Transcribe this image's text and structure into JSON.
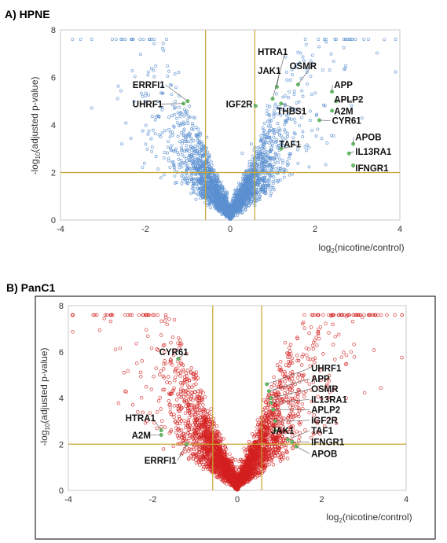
{
  "chart_data": [
    {
      "type": "scatter",
      "panel_title": "A) HPNE",
      "xlabel": "log2(nicotine/control)",
      "ylabel": "-log10(adjusted p-value)",
      "xlim": [
        -4,
        4
      ],
      "ylim": [
        0,
        8
      ],
      "xticks": [
        -4,
        -2,
        0,
        2,
        4
      ],
      "yticks": [
        0,
        2,
        4,
        6,
        8
      ],
      "threshold_x": [
        -0.58,
        0.58
      ],
      "threshold_y": 2,
      "grid": false,
      "legend": "none",
      "point_color": "#5b8fd0",
      "highlight_color": "#6cc36c",
      "threshold_color": "#c8a430",
      "highlighted": [
        {
          "gene": "HTRA1",
          "x": 1.0,
          "y": 5.1
        },
        {
          "gene": "JAK1",
          "x": 1.1,
          "y": 5.6
        },
        {
          "gene": "OSMR",
          "x": 1.6,
          "y": 5.7
        },
        {
          "gene": "APP",
          "x": 2.4,
          "y": 5.4
        },
        {
          "gene": "APLP2",
          "x": 2.5,
          "y": 5.0
        },
        {
          "gene": "A2M",
          "x": 2.4,
          "y": 4.6
        },
        {
          "gene": "CYR61",
          "x": 2.1,
          "y": 4.2
        },
        {
          "gene": "THBS1",
          "x": 1.2,
          "y": 4.9
        },
        {
          "gene": "IGF2R",
          "x": 0.6,
          "y": 4.8
        },
        {
          "gene": "TAF1",
          "x": 1.2,
          "y": 3.0
        },
        {
          "gene": "APOB",
          "x": 2.9,
          "y": 3.2
        },
        {
          "gene": "IL13RA1",
          "x": 2.8,
          "y": 2.8
        },
        {
          "gene": "IFNGR1",
          "x": 2.9,
          "y": 2.3
        },
        {
          "gene": "ERRFI1",
          "x": -1.0,
          "y": 5.0
        },
        {
          "gene": "UHRF1",
          "x": -1.1,
          "y": 4.9
        }
      ],
      "labels": [
        {
          "text": "ERRFI1",
          "x": -2.3,
          "y": 5.55,
          "point": "ERRFI1"
        },
        {
          "text": "UHRF1",
          "x": -2.3,
          "y": 4.75,
          "point": "UHRF1"
        },
        {
          "text": "IGF2R",
          "x": -0.1,
          "y": 4.75,
          "point": "IGF2R"
        },
        {
          "text": "HTRA1",
          "x": 0.65,
          "y": 6.95,
          "point": "HTRA1"
        },
        {
          "text": "JAK1",
          "x": 0.65,
          "y": 6.15,
          "point": "JAK1"
        },
        {
          "text": "OSMR",
          "x": 1.4,
          "y": 6.35,
          "point": "OSMR"
        },
        {
          "text": "THBS1",
          "x": 1.1,
          "y": 4.45,
          "point": "THBS1"
        },
        {
          "text": "APP",
          "x": 2.45,
          "y": 5.55,
          "point": "APP"
        },
        {
          "text": "APLP2",
          "x": 2.45,
          "y": 4.95,
          "point": "APLP2"
        },
        {
          "text": "A2M",
          "x": 2.45,
          "y": 4.45,
          "point": "A2M"
        },
        {
          "text": "CYR61",
          "x": 2.4,
          "y": 4.05,
          "point": "CYR61"
        },
        {
          "text": "TAF1",
          "x": 1.15,
          "y": 3.05,
          "point": "TAF1"
        },
        {
          "text": "APOB",
          "x": 2.95,
          "y": 3.35,
          "point": "APOB"
        },
        {
          "text": "IL13RA1",
          "x": 2.95,
          "y": 2.75,
          "point": "IL13RA1"
        },
        {
          "text": "IFNGR1",
          "x": 2.95,
          "y": 2.05,
          "point": "IFNGR1"
        }
      ]
    },
    {
      "type": "scatter",
      "panel_title": "B) PanC1",
      "xlabel": "log2(nicotine/control)",
      "ylabel": "-log10(adjusted p-value)",
      "xlim": [
        -4,
        4
      ],
      "ylim": [
        0,
        8
      ],
      "xticks": [
        -4,
        -2,
        0,
        2,
        4
      ],
      "yticks": [
        0,
        2,
        4,
        6,
        8
      ],
      "threshold_x": [
        -0.58,
        0.58
      ],
      "threshold_y": 2,
      "grid": false,
      "legend": "none",
      "point_color": "#d42020",
      "highlight_color": "#6cc36c",
      "threshold_color": "#c8a430",
      "highlighted": [
        {
          "gene": "CYR61",
          "x": -1.4,
          "y": 5.7
        },
        {
          "gene": "HTRA1",
          "x": -1.8,
          "y": 2.6
        },
        {
          "gene": "A2M",
          "x": -1.8,
          "y": 2.4
        },
        {
          "gene": "ERRFI1",
          "x": -1.2,
          "y": 2.0
        },
        {
          "gene": "UHRF1",
          "x": 0.7,
          "y": 4.6
        },
        {
          "gene": "APP",
          "x": 0.75,
          "y": 4.3
        },
        {
          "gene": "OSMR",
          "x": 0.8,
          "y": 4.0
        },
        {
          "gene": "IL13RA1",
          "x": 0.8,
          "y": 3.8
        },
        {
          "gene": "APLP2",
          "x": 0.85,
          "y": 3.5
        },
        {
          "gene": "IGF2R",
          "x": 0.9,
          "y": 3.0
        },
        {
          "gene": "JAK1",
          "x": 0.9,
          "y": 2.6
        },
        {
          "gene": "TAF1",
          "x": 1.2,
          "y": 2.2
        },
        {
          "gene": "IFNGR1",
          "x": 1.3,
          "y": 2.1
        },
        {
          "gene": "APOB",
          "x": 1.4,
          "y": 1.9
        }
      ],
      "labels": [
        {
          "text": "CYR61",
          "x": -1.85,
          "y": 5.85,
          "point": "CYR61"
        },
        {
          "text": "HTRA1",
          "x": -2.65,
          "y": 3.0,
          "point": "HTRA1"
        },
        {
          "text": "A2M",
          "x": -2.5,
          "y": 2.25,
          "point": "A2M"
        },
        {
          "text": "ERRFI1",
          "x": -2.2,
          "y": 1.15,
          "point": "ERRFI1"
        },
        {
          "text": "UHRF1",
          "x": 1.75,
          "y": 5.15,
          "point": "UHRF1"
        },
        {
          "text": "APP",
          "x": 1.75,
          "y": 4.7,
          "point": "APP"
        },
        {
          "text": "OSMR",
          "x": 1.75,
          "y": 4.25,
          "point": "OSMR"
        },
        {
          "text": "IL13RA1",
          "x": 1.75,
          "y": 3.8,
          "point": "IL13RA1"
        },
        {
          "text": "APLP2",
          "x": 1.75,
          "y": 3.35,
          "point": "APLP2"
        },
        {
          "text": "IGF2R",
          "x": 1.75,
          "y": 2.9,
          "point": "IGF2R"
        },
        {
          "text": "JAK1",
          "x": 0.8,
          "y": 2.45,
          "point": "JAK1"
        },
        {
          "text": "TAF1",
          "x": 1.75,
          "y": 2.45,
          "point": "TAF1"
        },
        {
          "text": "IFNGR1",
          "x": 1.75,
          "y": 1.95,
          "point": "IFNGR1"
        },
        {
          "text": "APOB",
          "x": 1.75,
          "y": 1.45,
          "point": "APOB"
        }
      ]
    }
  ]
}
